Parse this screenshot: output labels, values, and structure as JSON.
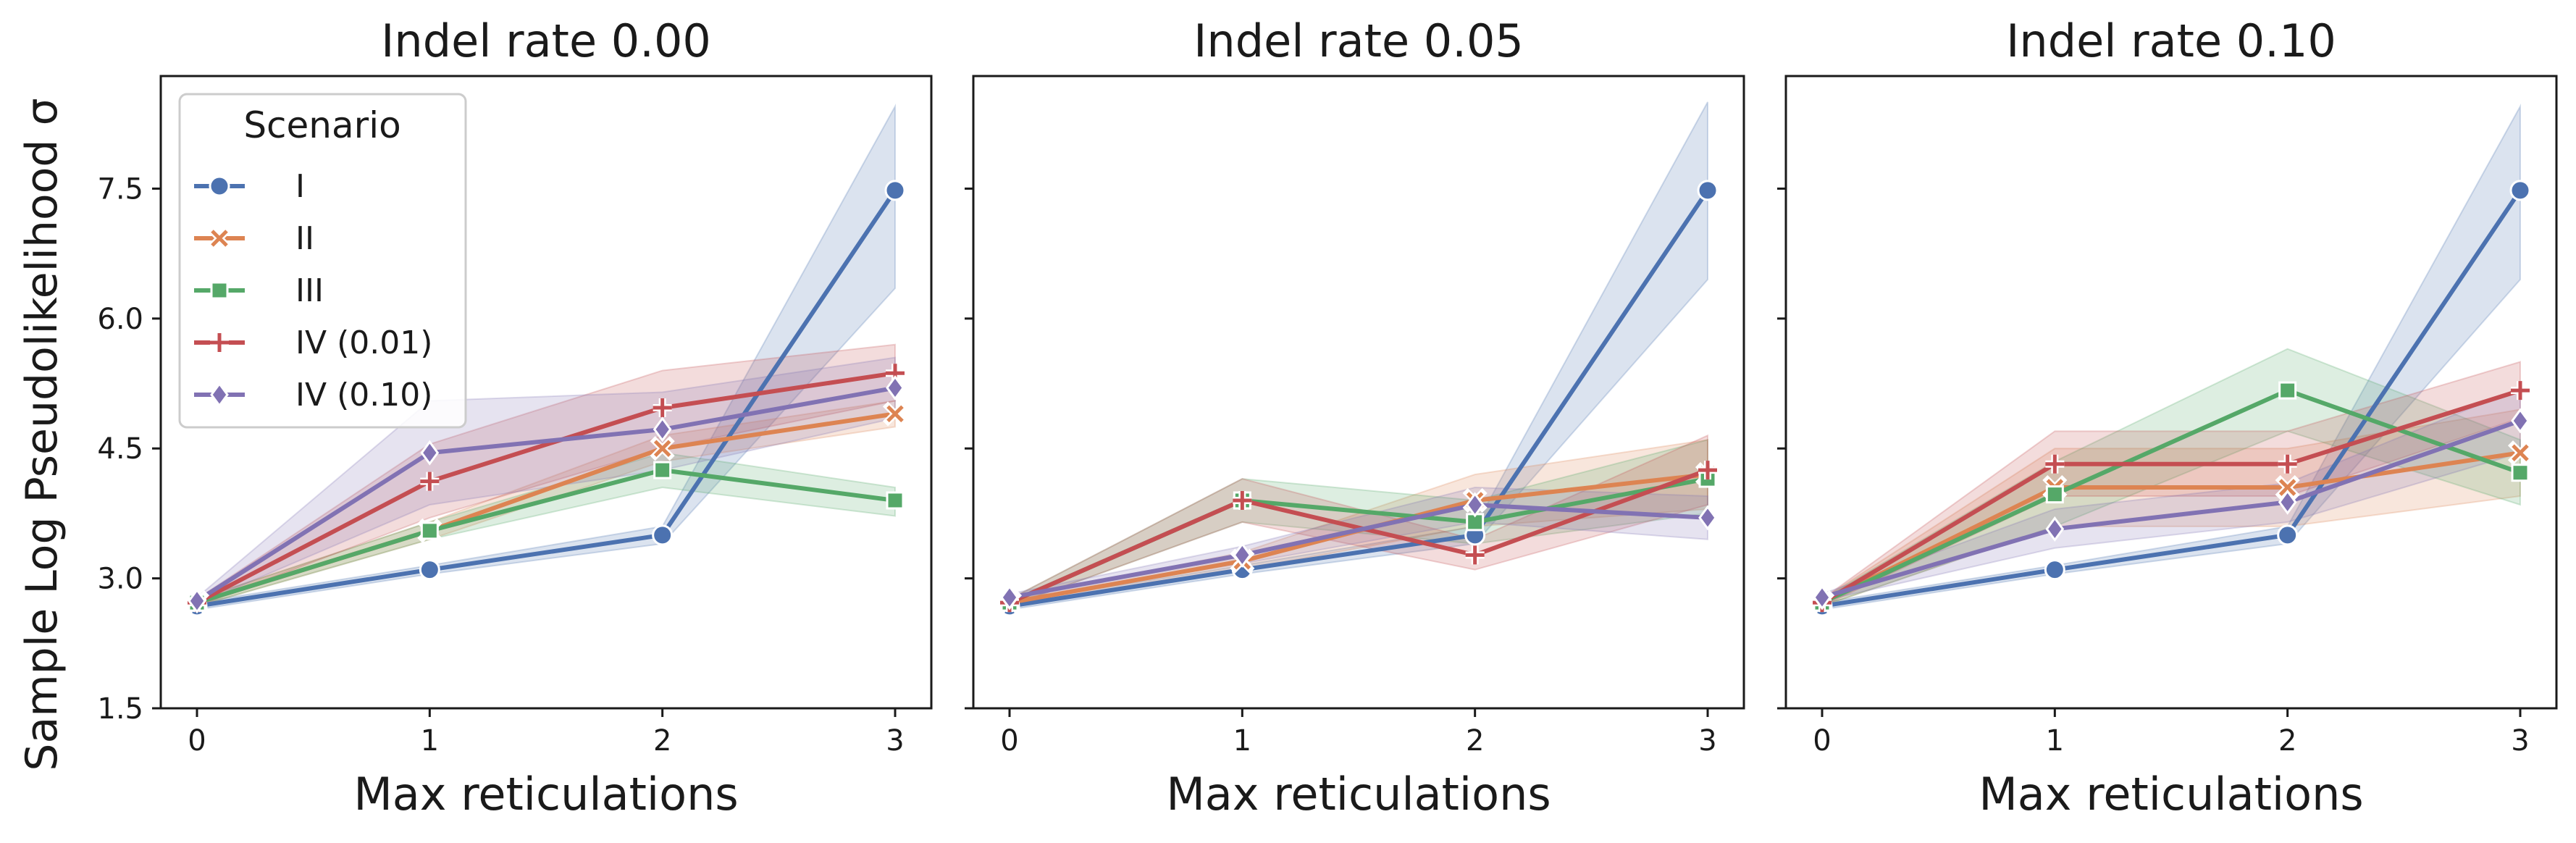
{
  "figure": {
    "ylabel": "Sample Log Pseudolikelihood σ",
    "legend_title": "Scenario"
  },
  "chart_data": [
    {
      "type": "line",
      "title": "Indel rate 0.00",
      "xlabel": "Max reticulations",
      "ylabel": "Sample Log Pseudolikelihood σ",
      "x": [
        0,
        1,
        2,
        3
      ],
      "ylim": [
        1.5,
        8.8
      ],
      "yticks": [
        1.5,
        3.0,
        4.5,
        6.0,
        7.5
      ],
      "ytick_labels": [
        "1.5",
        "3.0",
        "4.5",
        "6.0",
        "7.5"
      ],
      "xtick_labels": [
        "0",
        "1",
        "2",
        "3"
      ],
      "grid": false,
      "legend": "top-left",
      "series": [
        {
          "name": "I",
          "color": "#4c72b0",
          "marker": "circle",
          "values": [
            2.68,
            3.1,
            3.5,
            7.48
          ],
          "lower": [
            2.64,
            3.05,
            3.4,
            6.35
          ],
          "upper": [
            2.72,
            3.15,
            3.6,
            8.45
          ]
        },
        {
          "name": "II",
          "color": "#dd8452",
          "marker": "x",
          "values": [
            2.72,
            3.55,
            4.5,
            4.9
          ],
          "lower": [
            2.68,
            3.45,
            4.35,
            4.75
          ],
          "upper": [
            2.76,
            3.65,
            4.65,
            5.05
          ]
        },
        {
          "name": "III",
          "color": "#55a868",
          "marker": "square",
          "values": [
            2.72,
            3.55,
            4.25,
            3.9
          ],
          "lower": [
            2.68,
            3.45,
            4.05,
            3.72
          ],
          "upper": [
            2.76,
            3.65,
            4.45,
            4.05
          ]
        },
        {
          "name": "IV (0.01)",
          "color": "#c44e52",
          "marker": "plus",
          "values": [
            2.72,
            4.12,
            4.97,
            5.37
          ],
          "lower": [
            2.68,
            3.7,
            4.5,
            5.05
          ],
          "upper": [
            2.76,
            4.55,
            5.4,
            5.7
          ]
        },
        {
          "name": "IV (0.10)",
          "color": "#8172b3",
          "marker": "diamond",
          "values": [
            2.74,
            4.45,
            4.72,
            5.2
          ],
          "lower": [
            2.7,
            3.85,
            4.25,
            4.85
          ],
          "upper": [
            2.78,
            5.05,
            5.15,
            5.55
          ]
        }
      ]
    },
    {
      "type": "line",
      "title": "Indel rate 0.05",
      "xlabel": "Max reticulations",
      "x": [
        0,
        1,
        2,
        3
      ],
      "ylim": [
        1.5,
        8.8
      ],
      "xtick_labels": [
        "0",
        "1",
        "2",
        "3"
      ],
      "grid": false,
      "series": [
        {
          "name": "I",
          "color": "#4c72b0",
          "marker": "circle",
          "values": [
            2.68,
            3.1,
            3.5,
            7.48
          ],
          "lower": [
            2.64,
            3.05,
            3.4,
            6.45
          ],
          "upper": [
            2.72,
            3.15,
            3.6,
            8.5
          ]
        },
        {
          "name": "II",
          "color": "#dd8452",
          "marker": "x",
          "values": [
            2.72,
            3.2,
            3.9,
            4.2
          ],
          "lower": [
            2.68,
            3.1,
            3.6,
            3.8
          ],
          "upper": [
            2.76,
            3.3,
            4.2,
            4.6
          ]
        },
        {
          "name": "III",
          "color": "#55a868",
          "marker": "square",
          "values": [
            2.72,
            3.9,
            3.65,
            4.15
          ],
          "lower": [
            2.68,
            3.65,
            3.4,
            3.75
          ],
          "upper": [
            2.76,
            4.15,
            3.9,
            4.6
          ]
        },
        {
          "name": "IV (0.01)",
          "color": "#c44e52",
          "marker": "plus",
          "values": [
            2.72,
            3.9,
            3.27,
            4.25
          ],
          "lower": [
            2.68,
            3.65,
            3.1,
            3.85
          ],
          "upper": [
            2.76,
            4.15,
            3.45,
            4.65
          ]
        },
        {
          "name": "IV (0.10)",
          "color": "#8172b3",
          "marker": "diamond",
          "values": [
            2.78,
            3.27,
            3.85,
            3.7
          ],
          "lower": [
            2.74,
            3.17,
            3.65,
            3.45
          ],
          "upper": [
            2.82,
            3.37,
            4.05,
            3.95
          ]
        }
      ]
    },
    {
      "type": "line",
      "title": "Indel rate 0.10",
      "xlabel": "Max reticulations",
      "x": [
        0,
        1,
        2,
        3
      ],
      "ylim": [
        1.5,
        8.8
      ],
      "xtick_labels": [
        "0",
        "1",
        "2",
        "3"
      ],
      "grid": false,
      "series": [
        {
          "name": "I",
          "color": "#4c72b0",
          "marker": "circle",
          "values": [
            2.68,
            3.1,
            3.5,
            7.48
          ],
          "lower": [
            2.64,
            3.05,
            3.4,
            6.45
          ],
          "upper": [
            2.72,
            3.15,
            3.6,
            8.45
          ]
        },
        {
          "name": "II",
          "color": "#dd8452",
          "marker": "x",
          "values": [
            2.72,
            4.05,
            4.05,
            4.45
          ],
          "lower": [
            2.68,
            3.6,
            3.6,
            3.95
          ],
          "upper": [
            2.76,
            4.5,
            4.5,
            4.95
          ]
        },
        {
          "name": "III",
          "color": "#55a868",
          "marker": "square",
          "values": [
            2.72,
            3.97,
            5.17,
            4.22
          ],
          "lower": [
            2.68,
            3.6,
            4.7,
            3.85
          ],
          "upper": [
            2.76,
            4.35,
            5.65,
            4.6
          ]
        },
        {
          "name": "IV (0.01)",
          "color": "#c44e52",
          "marker": "plus",
          "values": [
            2.72,
            4.32,
            4.32,
            5.17
          ],
          "lower": [
            2.68,
            3.95,
            3.95,
            4.85
          ],
          "upper": [
            2.76,
            4.7,
            4.7,
            5.5
          ]
        },
        {
          "name": "IV (0.10)",
          "color": "#8172b3",
          "marker": "diamond",
          "values": [
            2.78,
            3.57,
            3.88,
            4.82
          ],
          "lower": [
            2.74,
            3.35,
            3.65,
            4.45
          ],
          "upper": [
            2.82,
            3.8,
            4.1,
            5.2
          ]
        }
      ]
    }
  ]
}
